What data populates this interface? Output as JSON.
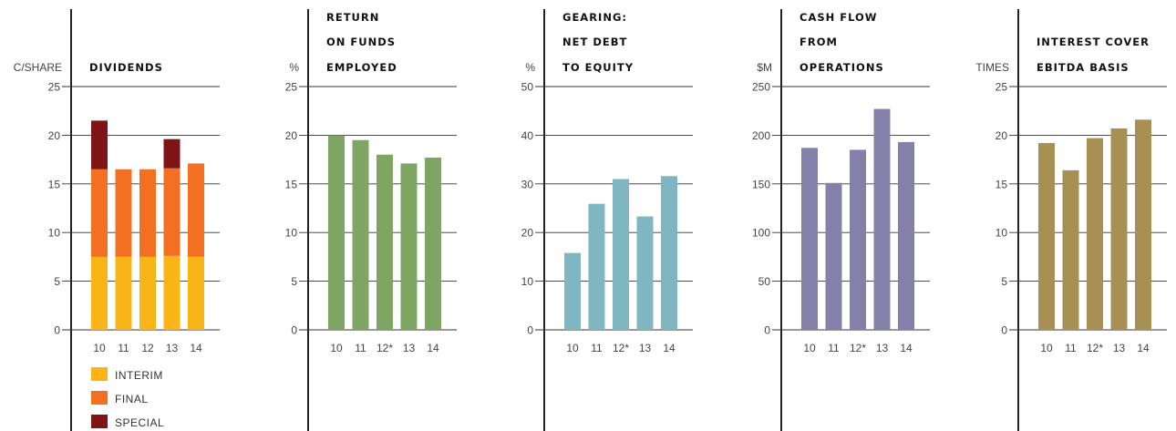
{
  "chart_data": [
    {
      "type": "bar",
      "stacked": true,
      "title_lines": [
        "",
        "",
        "DIVIDENDS"
      ],
      "unit": "C/SHARE",
      "categories": [
        "10",
        "11",
        "12",
        "13",
        "14"
      ],
      "ylim": [
        0,
        25
      ],
      "yticks": [
        "0",
        "5",
        "10",
        "15",
        "20",
        "25"
      ],
      "grid": true,
      "series": [
        {
          "name": "INTERIM",
          "color": "#F9B418",
          "values": [
            7.5,
            7.5,
            7.5,
            7.6,
            7.5
          ]
        },
        {
          "name": "FINAL",
          "color": "#F36F21",
          "values": [
            9.0,
            9.0,
            9.0,
            9.0,
            9.6
          ]
        },
        {
          "name": "SPECIAL",
          "color": "#7E1416",
          "values": [
            5.0,
            0,
            0,
            3.0,
            0
          ]
        }
      ],
      "legend": "bottom"
    },
    {
      "type": "bar",
      "title_lines": [
        "RETURN",
        "ON FUNDS",
        "EMPLOYED"
      ],
      "unit": "%",
      "categories": [
        "10",
        "11",
        "12*",
        "13",
        "14"
      ],
      "ylim": [
        0,
        25
      ],
      "yticks": [
        "0",
        "5",
        "10",
        "15",
        "20",
        "25"
      ],
      "grid": true,
      "color": "#7FA563",
      "values": [
        20.0,
        19.5,
        18.0,
        17.1,
        17.7
      ]
    },
    {
      "type": "bar",
      "title_lines": [
        "GEARING:",
        "NET DEBT",
        "TO EQUITY"
      ],
      "unit": "%",
      "categories": [
        "10",
        "11",
        "12*",
        "13",
        "14"
      ],
      "ylim": [
        0,
        50
      ],
      "yticks": [
        "0",
        "10",
        "20",
        "30",
        "40",
        "50"
      ],
      "grid": true,
      "color": "#80B6C2",
      "values": [
        15.8,
        25.9,
        31.0,
        23.3,
        31.6
      ]
    },
    {
      "type": "bar",
      "title_lines": [
        "CASH FLOW",
        "FROM",
        "OPERATIONS"
      ],
      "unit": "$M",
      "categories": [
        "10",
        "11",
        "12*",
        "13",
        "14"
      ],
      "ylim": [
        0,
        250
      ],
      "yticks": [
        "0",
        "50",
        "100",
        "150",
        "200",
        "250"
      ],
      "grid": true,
      "color": "#8480AA",
      "values": [
        187,
        151,
        185,
        227,
        193
      ]
    },
    {
      "type": "bar",
      "title_lines": [
        "",
        "INTEREST COVER",
        "EBITDA BASIS"
      ],
      "unit": "TIMES",
      "categories": [
        "10",
        "11",
        "12*",
        "13",
        "14"
      ],
      "ylim": [
        0,
        25
      ],
      "yticks": [
        "0",
        "5",
        "10",
        "15",
        "20",
        "25"
      ],
      "grid": true,
      "color": "#A89055",
      "values": [
        19.2,
        16.4,
        19.7,
        20.7,
        21.6
      ]
    }
  ]
}
